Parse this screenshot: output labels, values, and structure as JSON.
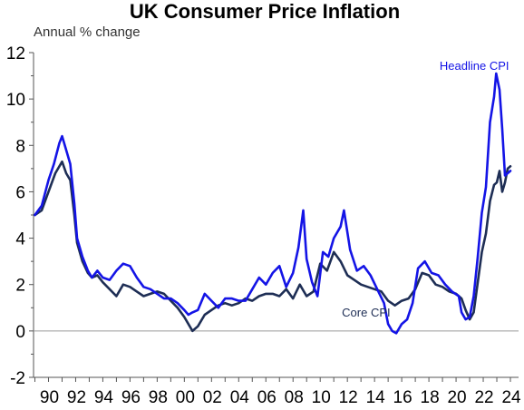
{
  "chart_data": {
    "type": "line",
    "title": "UK Consumer Price Inflation",
    "ylabel": "Annual % change",
    "xlabel": "",
    "ylim": [
      -2,
      12
    ],
    "xlim": [
      1988.9,
      2024.6
    ],
    "yticks": [
      -2,
      0,
      2,
      4,
      6,
      8,
      10,
      12
    ],
    "xtick_labels": [
      "90",
      "92",
      "94",
      "96",
      "98",
      "00",
      "02",
      "04",
      "06",
      "08",
      "10",
      "12",
      "14",
      "16",
      "18",
      "20",
      "22",
      "24"
    ],
    "xtick_years": [
      1990,
      1992,
      1994,
      1996,
      1998,
      2000,
      2002,
      2004,
      2006,
      2008,
      2010,
      2012,
      2014,
      2016,
      2018,
      2020,
      2022,
      2024
    ],
    "grid": false,
    "legend": "inline labels",
    "series": [
      {
        "name": "Headline CPI",
        "color": "#1414e6",
        "x": [
          1989.0,
          1989.5,
          1990.0,
          1990.4,
          1990.8,
          1991.0,
          1991.3,
          1991.6,
          1991.9,
          1992.1,
          1992.5,
          1992.9,
          1993.2,
          1993.6,
          1994.0,
          1994.5,
          1995.0,
          1995.5,
          1996.0,
          1996.5,
          1997.0,
          1997.5,
          1998.0,
          1998.5,
          1999.0,
          1999.5,
          2000.0,
          2000.3,
          2000.6,
          2001.0,
          2001.5,
          2002.0,
          2002.5,
          2003.0,
          2003.5,
          2004.0,
          2004.5,
          2005.0,
          2005.5,
          2006.0,
          2006.5,
          2007.0,
          2007.5,
          2008.0,
          2008.4,
          2008.75,
          2009.0,
          2009.4,
          2009.8,
          2010.2,
          2010.6,
          2011.0,
          2011.5,
          2011.75,
          2012.2,
          2012.7,
          2013.2,
          2013.7,
          2014.2,
          2014.7,
          2015.0,
          2015.3,
          2015.6,
          2016.0,
          2016.4,
          2016.8,
          2017.2,
          2017.7,
          2018.2,
          2018.7,
          2019.2,
          2019.7,
          2020.2,
          2020.4,
          2020.7,
          2021.0,
          2021.3,
          2021.6,
          2021.9,
          2022.2,
          2022.5,
          2022.8,
          2022.95,
          2023.2,
          2023.4,
          2023.6,
          2023.8,
          2024.0
        ],
        "y": [
          5.0,
          5.4,
          6.5,
          7.2,
          8.1,
          8.4,
          7.8,
          7.2,
          5.5,
          4.0,
          3.2,
          2.6,
          2.3,
          2.6,
          2.3,
          2.2,
          2.6,
          2.9,
          2.8,
          2.3,
          1.9,
          1.8,
          1.6,
          1.4,
          1.4,
          1.2,
          0.9,
          0.7,
          0.8,
          0.9,
          1.6,
          1.3,
          1.0,
          1.4,
          1.4,
          1.3,
          1.3,
          1.8,
          2.3,
          2.0,
          2.5,
          2.8,
          1.9,
          2.5,
          3.6,
          5.2,
          3.1,
          2.1,
          1.5,
          3.4,
          3.2,
          4.0,
          4.5,
          5.2,
          3.5,
          2.6,
          2.8,
          2.4,
          1.8,
          1.2,
          0.3,
          0.0,
          -0.1,
          0.3,
          0.5,
          1.2,
          2.7,
          3.0,
          2.5,
          2.4,
          2.0,
          1.7,
          1.5,
          0.8,
          0.5,
          0.6,
          1.5,
          3.2,
          5.1,
          6.2,
          9.0,
          10.1,
          11.1,
          10.4,
          8.7,
          6.7,
          6.8,
          6.9
        ]
      },
      {
        "name": "Core CPI",
        "color": "#1e2e55",
        "x": [
          1989.0,
          1989.5,
          1990.0,
          1990.5,
          1991.0,
          1991.3,
          1991.6,
          1991.9,
          1992.1,
          1992.5,
          1992.9,
          1993.2,
          1993.6,
          1994.0,
          1994.5,
          1995.0,
          1995.5,
          1996.0,
          1996.5,
          1997.0,
          1997.5,
          1998.0,
          1998.5,
          1999.0,
          1999.5,
          2000.0,
          2000.3,
          2000.6,
          2001.0,
          2001.5,
          2002.0,
          2002.5,
          2003.0,
          2003.5,
          2004.0,
          2004.5,
          2005.0,
          2005.5,
          2006.0,
          2006.5,
          2007.0,
          2007.5,
          2008.0,
          2008.5,
          2009.0,
          2009.5,
          2010.0,
          2010.5,
          2011.0,
          2011.5,
          2012.0,
          2012.5,
          2013.0,
          2013.5,
          2014.0,
          2014.5,
          2015.0,
          2015.5,
          2016.0,
          2016.5,
          2017.0,
          2017.5,
          2018.0,
          2018.5,
          2019.0,
          2019.5,
          2020.0,
          2020.4,
          2020.7,
          2021.0,
          2021.3,
          2021.6,
          2021.9,
          2022.2,
          2022.5,
          2022.8,
          2023.0,
          2023.2,
          2023.4,
          2023.6,
          2023.8,
          2024.0
        ],
        "y": [
          5.0,
          5.2,
          6.0,
          6.8,
          7.3,
          6.8,
          6.5,
          5.0,
          3.8,
          3.0,
          2.5,
          2.3,
          2.4,
          2.1,
          1.8,
          1.5,
          2.0,
          1.9,
          1.7,
          1.5,
          1.6,
          1.7,
          1.6,
          1.3,
          1.0,
          0.6,
          0.3,
          0.0,
          0.2,
          0.7,
          0.9,
          1.1,
          1.2,
          1.1,
          1.2,
          1.4,
          1.3,
          1.5,
          1.6,
          1.6,
          1.5,
          1.8,
          1.4,
          2.0,
          1.5,
          1.7,
          2.9,
          2.6,
          3.4,
          3.0,
          2.4,
          2.2,
          2.0,
          1.9,
          1.8,
          1.7,
          1.3,
          1.1,
          1.3,
          1.4,
          1.8,
          2.5,
          2.4,
          2.0,
          1.9,
          1.7,
          1.6,
          1.4,
          0.9,
          0.5,
          0.8,
          2.1,
          3.4,
          4.2,
          5.6,
          6.3,
          6.4,
          6.9,
          6.0,
          6.4,
          7.0,
          7.1
        ]
      }
    ],
    "annotations": [
      {
        "text": "Headline CPI",
        "series": 0
      },
      {
        "text": "Core CPI",
        "series": 1
      }
    ]
  }
}
